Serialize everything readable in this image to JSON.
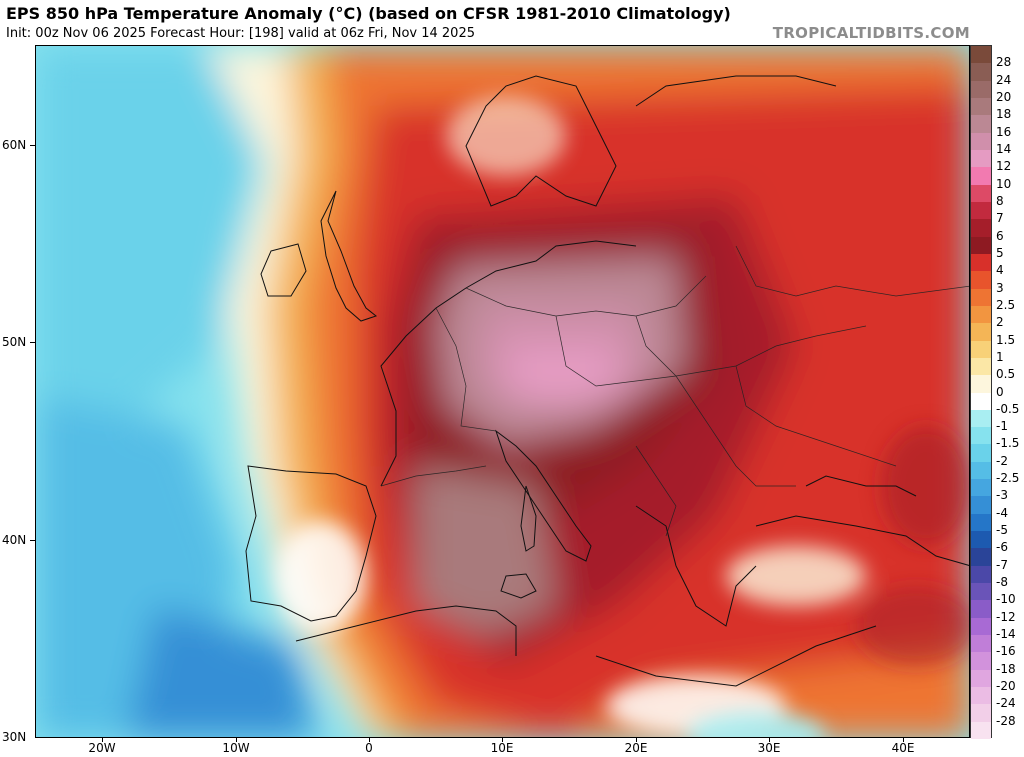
{
  "header": {
    "title": "EPS 850 hPa Temperature Anomaly (°C) (based on CFSR 1981-2010 Climatology)",
    "subtitle": "Init: 00z Nov 06 2025   Forecast Hour: [198]   valid at 06z Fri, Nov 14 2025",
    "brand": "TROPICALTIDBITS.COM"
  },
  "map": {
    "lat_labels": [
      "60N",
      "50N",
      "40N",
      "30N"
    ],
    "lon_labels": [
      "20W",
      "10W",
      "0",
      "10E",
      "20E",
      "30E",
      "40E"
    ]
  },
  "colorbar": {
    "labels": [
      "28",
      "24",
      "20",
      "18",
      "16",
      "14",
      "12",
      "10",
      "8",
      "7",
      "6",
      "5",
      "4",
      "3",
      "2.5",
      "2",
      "1.5",
      "1",
      "0.5",
      "0",
      "-0.5",
      "-1",
      "-1.5",
      "-2",
      "-2.5",
      "-3",
      "-4",
      "-5",
      "-6",
      "-7",
      "-8",
      "-10",
      "-12",
      "-14",
      "-16",
      "-18",
      "-20",
      "-24",
      "-28"
    ],
    "colors": [
      "#7a4a3a",
      "#8a5d54",
      "#9a6b68",
      "#a97a7c",
      "#bb8894",
      "#d08fab",
      "#e59bc2",
      "#f27ab0",
      "#dd4a66",
      "#c22a3e",
      "#a51e2a",
      "#8e1a22",
      "#d8302a",
      "#e8542c",
      "#ee7433",
      "#f29540",
      "#f4b556",
      "#f8d178",
      "#fbe7a6",
      "#fdf6dd",
      "#ffffff",
      "#a9eef2",
      "#86e2ee",
      "#6ad2ea",
      "#55bde6",
      "#45a6e0",
      "#358fd6",
      "#2576c8",
      "#1d5ab0",
      "#2a4498",
      "#4b48a8",
      "#6a54b8",
      "#8a5cc8",
      "#a86ad4",
      "#c07ed8",
      "#d292dc",
      "#e0a6e0",
      "#ebbce4",
      "#f2cfe8",
      "#f8e2f0"
    ]
  }
}
